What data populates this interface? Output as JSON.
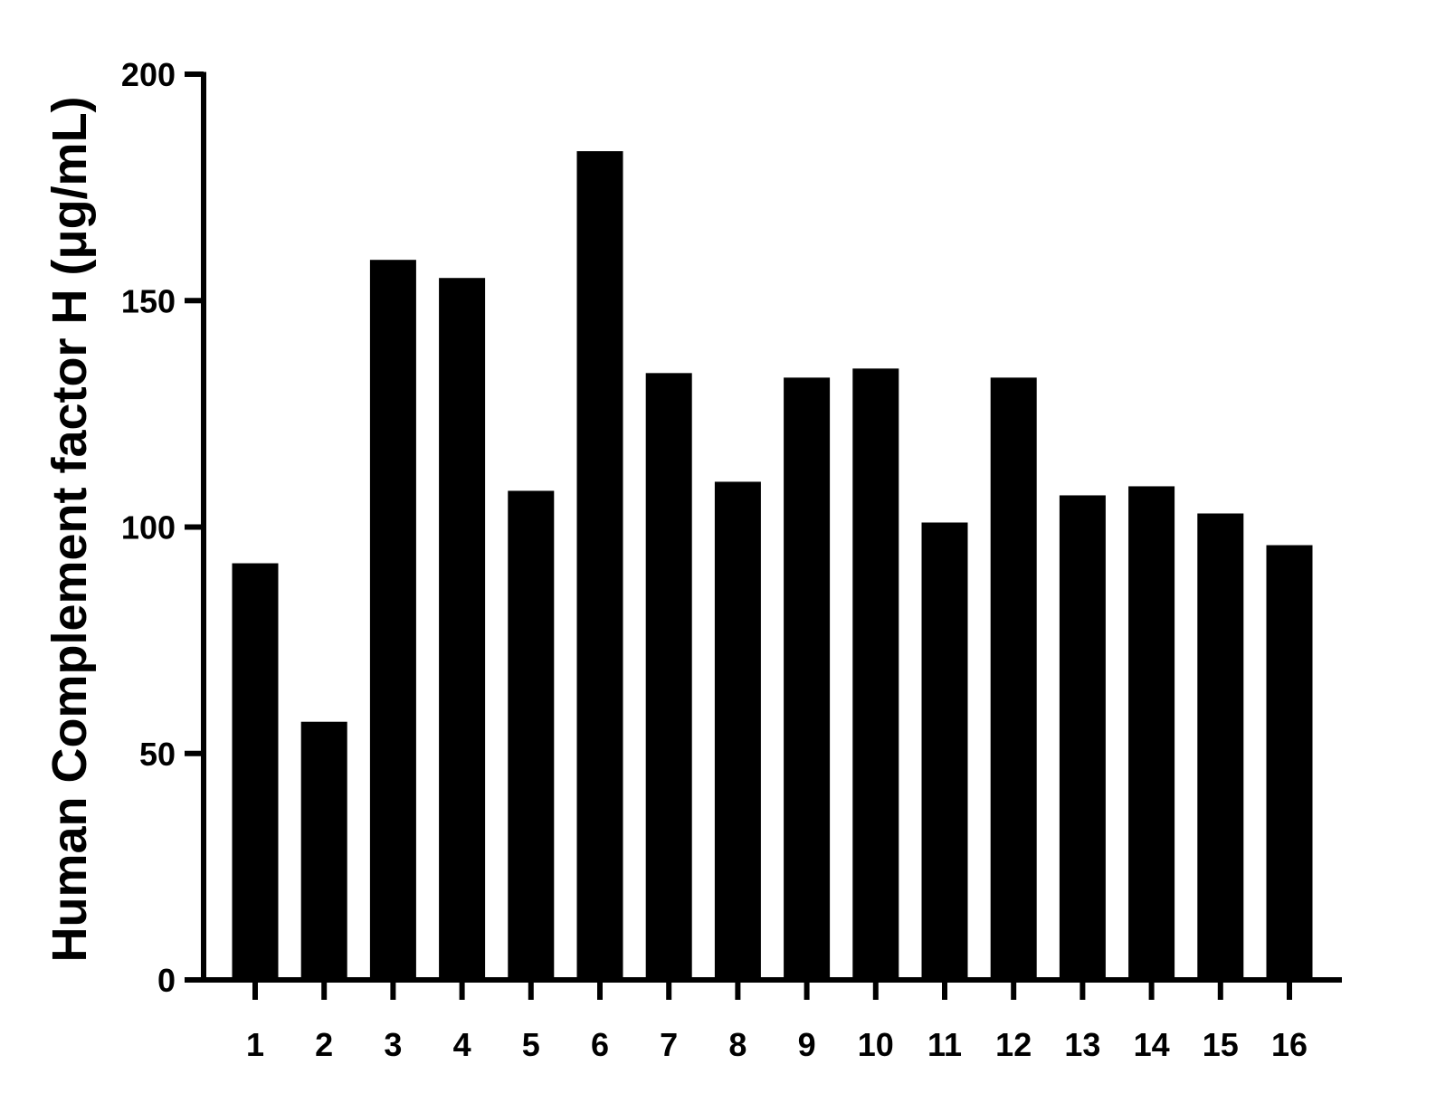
{
  "chart_data": {
    "type": "bar",
    "title": "",
    "xlabel": "",
    "ylabel": "Human Complement factor H (μg/mL)",
    "categories": [
      "1",
      "2",
      "3",
      "4",
      "5",
      "6",
      "7",
      "8",
      "9",
      "10",
      "11",
      "12",
      "13",
      "14",
      "15",
      "16"
    ],
    "values": [
      92,
      57,
      159,
      155,
      108,
      183,
      134,
      110,
      133,
      135,
      101,
      133,
      107,
      109,
      103,
      96
    ],
    "ylim": [
      0,
      200
    ],
    "yticks": [
      0,
      50,
      100,
      150,
      200
    ],
    "bar_color": "#000000",
    "axis_color": "#000000",
    "grid": false,
    "legend": "none"
  }
}
